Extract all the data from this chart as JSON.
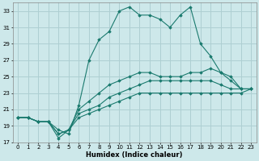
{
  "xlabel": "Humidex (Indice chaleur)",
  "bg_color": "#cde8ea",
  "line_color": "#1a7a6e",
  "grid_color": "#aecfd2",
  "ylim": [
    17,
    34
  ],
  "xlim": [
    -0.5,
    23.5
  ],
  "yticks": [
    17,
    19,
    21,
    23,
    25,
    27,
    29,
    31,
    33
  ],
  "xticks": [
    0,
    1,
    2,
    3,
    4,
    5,
    6,
    7,
    8,
    9,
    10,
    11,
    12,
    13,
    14,
    15,
    16,
    17,
    18,
    19,
    20,
    21,
    22,
    23
  ],
  "series": [
    [
      20.0,
      20.0,
      19.5,
      19.5,
      18.5,
      18.0,
      21.5,
      27.0,
      29.5,
      30.5,
      33.0,
      33.5,
      32.5,
      32.5,
      32.0,
      31.0,
      32.5,
      33.5,
      29.0,
      27.5,
      25.5,
      24.5,
      23.5,
      23.5
    ],
    [
      20.0,
      20.0,
      19.5,
      19.5,
      18.0,
      18.5,
      21.0,
      22.0,
      23.0,
      24.0,
      24.5,
      25.0,
      25.5,
      25.5,
      25.0,
      25.0,
      25.0,
      25.5,
      25.5,
      26.0,
      25.5,
      25.0,
      23.5,
      23.5
    ],
    [
      20.0,
      20.0,
      19.5,
      19.5,
      18.0,
      18.5,
      20.5,
      21.0,
      21.5,
      22.5,
      23.0,
      23.5,
      24.0,
      24.5,
      24.5,
      24.5,
      24.5,
      24.5,
      24.5,
      24.5,
      24.0,
      23.5,
      23.5,
      23.5
    ],
    [
      20.0,
      20.0,
      19.5,
      19.5,
      17.5,
      18.5,
      20.0,
      20.5,
      21.0,
      21.5,
      22.0,
      22.5,
      23.0,
      23.0,
      23.0,
      23.0,
      23.0,
      23.0,
      23.0,
      23.0,
      23.0,
      23.0,
      23.0,
      23.5
    ]
  ]
}
